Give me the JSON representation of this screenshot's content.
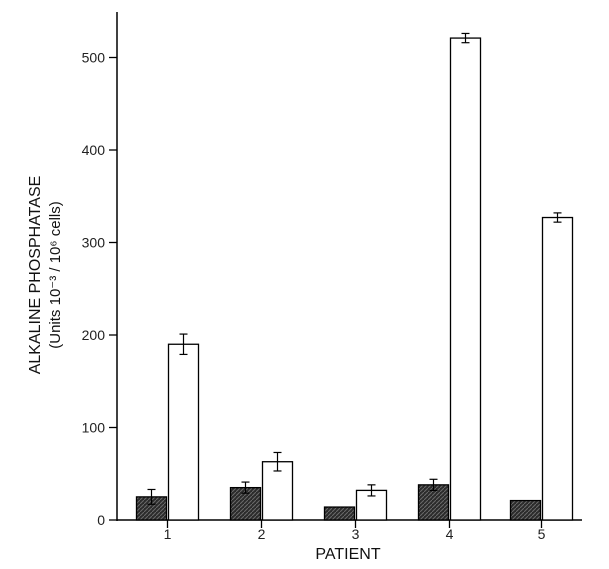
{
  "chart_data": {
    "type": "bar",
    "title": "",
    "xlabel": "PATIENT",
    "ylabel": "ALKALINE PHOSPHATASE",
    "ylabel_units": "(Units 10⁻³ / 10⁶ cells)",
    "categories": [
      "1",
      "2",
      "3",
      "4",
      "5"
    ],
    "ylim": [
      0,
      550
    ],
    "yticks": [
      0,
      100,
      200,
      300,
      400,
      500
    ],
    "grid": false,
    "legend": "none",
    "series": [
      {
        "values": [
          25,
          35,
          14,
          38,
          21
        ],
        "errors": [
          8,
          6,
          0,
          6,
          0
        ],
        "fill": "hatched-dark",
        "color": "#2b2b2b"
      },
      {
        "values": [
          190,
          63,
          32,
          521,
          327
        ],
        "errors": [
          11,
          10,
          6,
          5,
          5
        ],
        "fill": "open",
        "color": "#ffffff"
      }
    ]
  }
}
